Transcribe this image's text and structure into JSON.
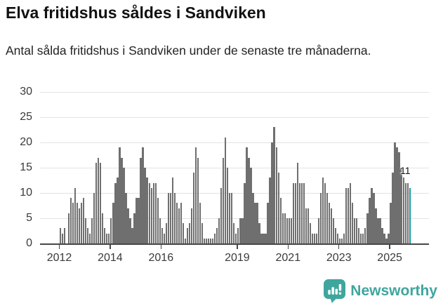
{
  "title": "Elva fritidshus såldes i Sandviken",
  "subtitle": "Antal sålda fritidshus i Sandviken under de senaste tre månaderna.",
  "annotation": {
    "label": "11"
  },
  "branding": {
    "logo": "newsworthy-logo",
    "text": "Newsworthy"
  },
  "colors": {
    "bar": "#706f6f",
    "highlight": "#0e9a9e",
    "brand": "#3fa69e",
    "grid": "#e3e3e3",
    "axis": "#474747"
  },
  "chart_data": {
    "type": "bar",
    "title": "Elva fritidshus såldes i Sandviken",
    "subtitle": "Antal sålda fritidshus i Sandviken under de senaste tre månaderna.",
    "frequency": "monthly",
    "start": "2012-01",
    "end": "2025-10",
    "ylim": [
      0,
      30
    ],
    "y_ticks": [
      0,
      5,
      10,
      15,
      20,
      25,
      30
    ],
    "x_tick_years": [
      2012,
      2014,
      2016,
      2019,
      2021,
      2023,
      2025
    ],
    "x_tick_labels": [
      "2012",
      "2014",
      "2016",
      "2019",
      "2021",
      "2023",
      "2025"
    ],
    "grid": true,
    "highlight_last": true,
    "highlight_value": 11,
    "values": [
      3,
      2,
      3,
      0,
      6,
      9,
      8,
      11,
      8,
      7,
      8,
      9,
      5,
      3,
      2,
      5,
      10,
      16,
      17,
      16,
      6,
      3,
      2,
      2,
      5,
      8,
      12,
      13,
      19,
      17,
      15,
      10,
      7,
      5,
      3,
      6,
      9,
      9,
      17,
      19,
      15,
      13,
      12,
      11,
      12,
      12,
      9,
      5,
      3,
      2,
      4,
      10,
      10,
      13,
      10,
      8,
      7,
      8,
      4,
      1,
      3,
      4,
      7,
      14,
      19,
      17,
      8,
      4,
      1,
      1,
      1,
      1,
      1,
      2,
      3,
      5,
      11,
      17,
      21,
      15,
      10,
      10,
      4,
      2,
      3,
      5,
      5,
      12,
      19,
      17,
      15,
      10,
      8,
      8,
      4,
      2,
      2,
      2,
      8,
      13,
      20,
      23,
      19,
      14,
      9,
      6,
      6,
      5,
      5,
      5,
      12,
      12,
      16,
      12,
      12,
      12,
      7,
      7,
      4,
      2,
      2,
      2,
      5,
      10,
      13,
      12,
      10,
      8,
      7,
      5,
      3,
      2,
      1,
      1,
      2,
      11,
      11,
      12,
      8,
      5,
      5,
      3,
      2,
      2,
      3,
      6,
      9,
      11,
      10,
      7,
      5,
      5,
      3,
      2,
      1,
      2,
      8,
      14,
      20,
      19,
      18,
      15,
      13,
      12,
      12,
      11
    ]
  }
}
